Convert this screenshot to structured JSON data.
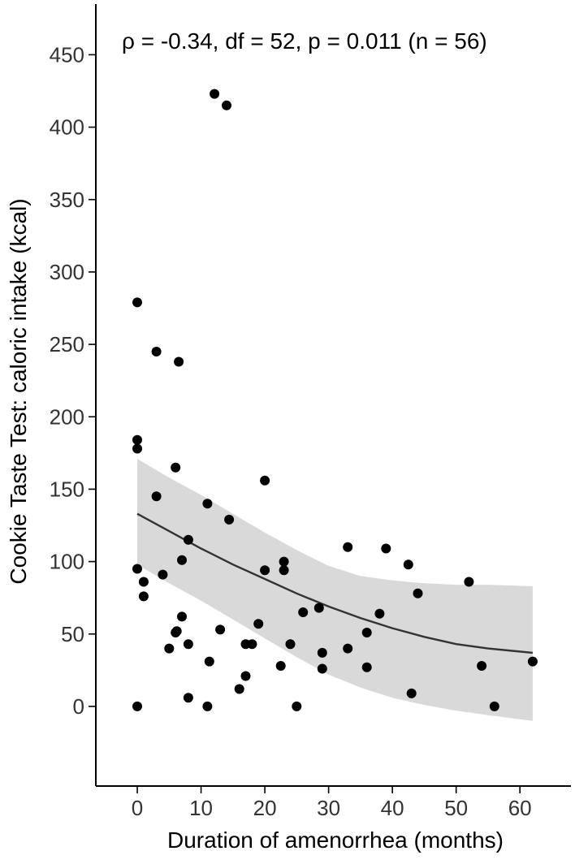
{
  "chart_data": {
    "type": "scatter",
    "annotation": "ρ = -0.34, df = 52, p = 0.011 (n = 56)",
    "xlabel": "Duration of amenorrhea (months)",
    "ylabel": "Cookie Taste Test: caloric intake (kcal)",
    "xlim": [
      -6.5,
      68
    ],
    "ylim": [
      -55,
      485
    ],
    "x_ticks": [
      0,
      10,
      20,
      30,
      40,
      50,
      60
    ],
    "y_ticks": [
      0,
      50,
      100,
      150,
      200,
      250,
      300,
      350,
      400,
      450
    ],
    "grid": false,
    "colors": {
      "points": "#000000",
      "fit_line": "#333333",
      "band": "#d9d9d9"
    },
    "points": [
      {
        "x": 0,
        "y": 279
      },
      {
        "x": 0,
        "y": 184
      },
      {
        "x": 0,
        "y": 178
      },
      {
        "x": 0,
        "y": 95
      },
      {
        "x": 0,
        "y": 0
      },
      {
        "x": 1,
        "y": 86
      },
      {
        "x": 1,
        "y": 76
      },
      {
        "x": 3,
        "y": 245
      },
      {
        "x": 3,
        "y": 145
      },
      {
        "x": 4,
        "y": 91
      },
      {
        "x": 5,
        "y": 40
      },
      {
        "x": 6,
        "y": 165
      },
      {
        "x": 6,
        "y": 51
      },
      {
        "x": 6.2,
        "y": 52
      },
      {
        "x": 6.5,
        "y": 238
      },
      {
        "x": 7,
        "y": 101
      },
      {
        "x": 7,
        "y": 62
      },
      {
        "x": 8,
        "y": 115
      },
      {
        "x": 8,
        "y": 43
      },
      {
        "x": 8,
        "y": 6
      },
      {
        "x": 11,
        "y": 140
      },
      {
        "x": 11,
        "y": 0
      },
      {
        "x": 11.3,
        "y": 31
      },
      {
        "x": 12.1,
        "y": 423
      },
      {
        "x": 13,
        "y": 53
      },
      {
        "x": 14,
        "y": 415
      },
      {
        "x": 14.4,
        "y": 129
      },
      {
        "x": 16,
        "y": 12
      },
      {
        "x": 17,
        "y": 43
      },
      {
        "x": 17,
        "y": 21
      },
      {
        "x": 18,
        "y": 43
      },
      {
        "x": 19,
        "y": 57
      },
      {
        "x": 20,
        "y": 156
      },
      {
        "x": 20,
        "y": 94
      },
      {
        "x": 22.5,
        "y": 28
      },
      {
        "x": 23,
        "y": 100
      },
      {
        "x": 23,
        "y": 94
      },
      {
        "x": 24,
        "y": 43
      },
      {
        "x": 25,
        "y": 0
      },
      {
        "x": 26,
        "y": 65
      },
      {
        "x": 28.5,
        "y": 68
      },
      {
        "x": 29,
        "y": 37
      },
      {
        "x": 29,
        "y": 26
      },
      {
        "x": 33,
        "y": 110
      },
      {
        "x": 33,
        "y": 40
      },
      {
        "x": 36,
        "y": 51
      },
      {
        "x": 36,
        "y": 27
      },
      {
        "x": 38,
        "y": 64
      },
      {
        "x": 39,
        "y": 109
      },
      {
        "x": 42.5,
        "y": 98
      },
      {
        "x": 43,
        "y": 9
      },
      {
        "x": 44,
        "y": 78
      },
      {
        "x": 52,
        "y": 86
      },
      {
        "x": 54,
        "y": 28
      },
      {
        "x": 56,
        "y": 0
      },
      {
        "x": 62,
        "y": 31
      }
    ],
    "fit": {
      "x": [
        0,
        5,
        10,
        15,
        20,
        25,
        30,
        35,
        40,
        45,
        50,
        55,
        62
      ],
      "y": [
        133,
        121,
        109,
        98,
        88,
        78,
        69,
        61,
        54,
        48,
        43,
        40,
        37
      ],
      "lower": [
        98,
        85,
        73,
        60,
        47,
        34,
        22,
        13,
        6,
        1,
        -3,
        -6,
        -10
      ],
      "upper": [
        171,
        158,
        146,
        133,
        120,
        108,
        97,
        90,
        87,
        85,
        84,
        84,
        83
      ]
    }
  }
}
